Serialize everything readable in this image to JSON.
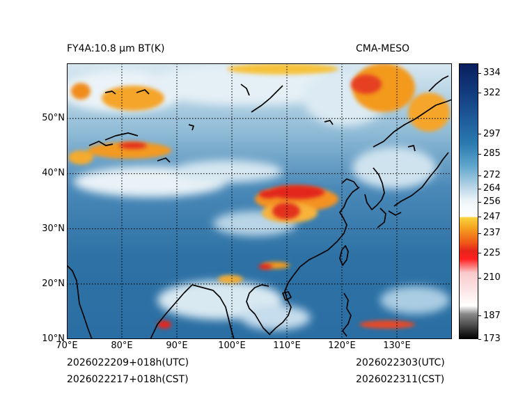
{
  "header": {
    "title_left": "FY4A:10.8 µm BT(K)",
    "title_right": "CMA-MESO"
  },
  "footer": {
    "init_utc": "2026022209+018h(UTC)",
    "init_cst": "2026022217+018h(CST)",
    "valid_utc": "2026022303(UTC)",
    "valid_cst": "2026022311(CST)"
  },
  "map": {
    "lon_range": [
      70,
      140
    ],
    "lat_range": [
      10,
      60
    ],
    "lon_ticks": [
      {
        "value": 70,
        "label": "70°E"
      },
      {
        "value": 80,
        "label": "80°E"
      },
      {
        "value": 90,
        "label": "90°E"
      },
      {
        "value": 100,
        "label": "100°E"
      },
      {
        "value": 110,
        "label": "110°E"
      },
      {
        "value": 120,
        "label": "120°E"
      },
      {
        "value": 130,
        "label": "130°E"
      }
    ],
    "lat_ticks": [
      {
        "value": 10,
        "label": "10°N"
      },
      {
        "value": 20,
        "label": "20°N"
      },
      {
        "value": 30,
        "label": "30°N"
      },
      {
        "value": 40,
        "label": "40°N"
      },
      {
        "value": 50,
        "label": "50°N"
      }
    ],
    "grid_style": "dotted"
  },
  "colorbar": {
    "range": [
      173,
      340
    ],
    "ticks": [
      {
        "value": 334,
        "label": "334"
      },
      {
        "value": 322,
        "label": "322"
      },
      {
        "value": 297,
        "label": "297"
      },
      {
        "value": 285,
        "label": "285"
      },
      {
        "value": 272,
        "label": "272"
      },
      {
        "value": 264,
        "label": "264"
      },
      {
        "value": 256,
        "label": "256"
      },
      {
        "value": 247,
        "label": "247"
      },
      {
        "value": 237,
        "label": "237"
      },
      {
        "value": 225,
        "label": "225"
      },
      {
        "value": 210,
        "label": "210"
      },
      {
        "value": 187,
        "label": "187"
      },
      {
        "value": 173,
        "label": "173"
      }
    ]
  },
  "colors": {
    "ocean_blue": "#2f73a6",
    "light_blue": "#a9cfe3",
    "white_cloud": "#eef5f9",
    "orange_cloud": "#f39a1c",
    "red_cloud": "#e2261c",
    "coast": "#000000"
  }
}
